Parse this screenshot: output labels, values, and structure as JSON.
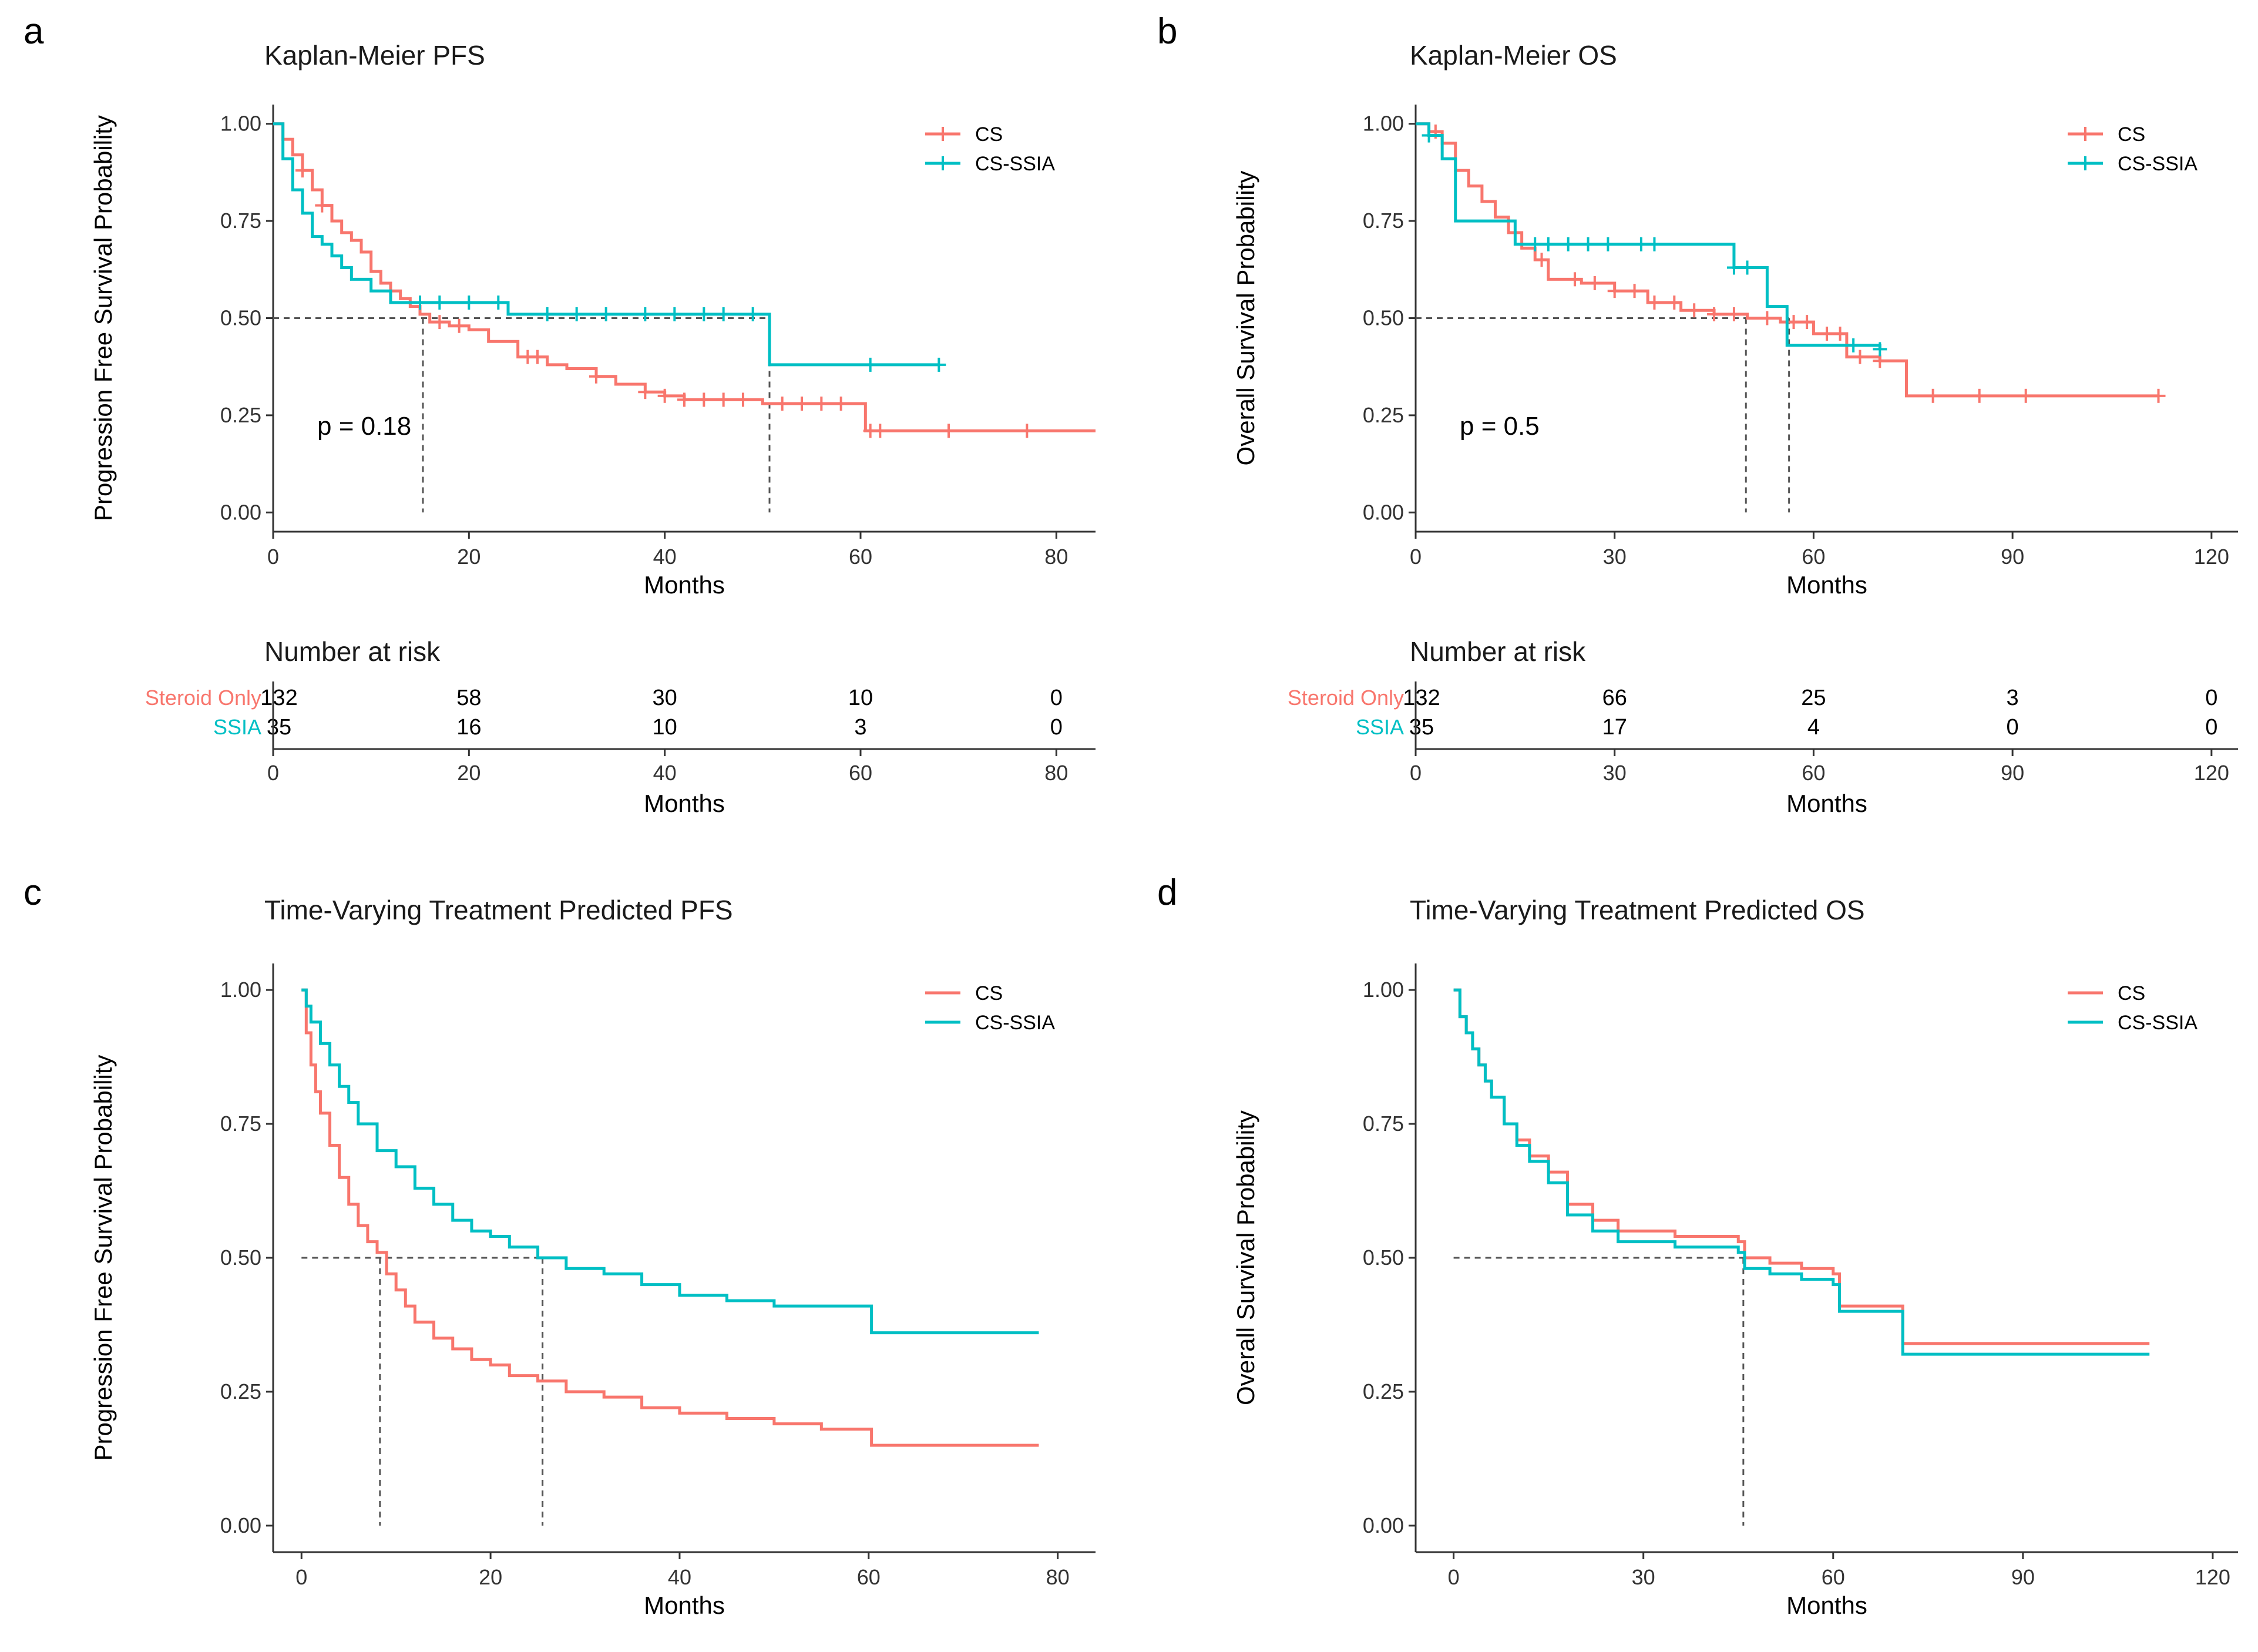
{
  "colors": {
    "cs": "#F8766D",
    "cs_ssia": "#00BFC4",
    "axis": "#333333",
    "ref": "#555555"
  },
  "chart_data": [
    {
      "id": "a",
      "panel": "a",
      "type": "line",
      "title": "Kaplan-Meier PFS",
      "xlabel": "Months",
      "ylabel": "Progression Free Survival Probability",
      "xlim": [
        0,
        84
      ],
      "xticks": [
        0,
        20,
        40,
        60,
        80
      ],
      "ylim": [
        0,
        1
      ],
      "yticks": [
        "0.00",
        "0.25",
        "0.50",
        "0.75",
        "1.00"
      ],
      "legend": [
        "CS",
        "CS-SSIA"
      ],
      "legend_placement": "top-right",
      "censor_marks": true,
      "pvalue": "p = 0.18",
      "median_lines": [
        15.3,
        50.7
      ],
      "series": [
        {
          "name": "CS",
          "color_key": "cs",
          "x": [
            0,
            1,
            2,
            3,
            4,
            5,
            6,
            7,
            8,
            9,
            10,
            11,
            12,
            13,
            14,
            15,
            16,
            18,
            20,
            22,
            25,
            28,
            30,
            33,
            35,
            38,
            40,
            42,
            45,
            50,
            55,
            60,
            60.5,
            84
          ],
          "y": [
            1,
            0.96,
            0.92,
            0.88,
            0.83,
            0.79,
            0.75,
            0.72,
            0.7,
            0.67,
            0.62,
            0.59,
            0.57,
            0.55,
            0.53,
            0.51,
            0.49,
            0.48,
            0.47,
            0.44,
            0.4,
            0.38,
            0.37,
            0.35,
            0.33,
            0.31,
            0.3,
            0.29,
            0.29,
            0.28,
            0.28,
            0.28,
            0.21,
            0.21
          ],
          "censor": [
            3,
            5,
            17,
            19,
            26,
            27,
            33,
            38,
            40,
            42,
            44,
            46,
            48,
            52,
            54,
            56,
            58,
            61,
            62,
            69,
            77
          ]
        },
        {
          "name": "CS-SSIA",
          "color_key": "cs_ssia",
          "x": [
            0,
            1,
            2,
            3,
            4,
            5,
            6,
            7,
            8,
            9,
            10,
            11,
            12,
            13,
            14,
            24,
            50.7,
            68
          ],
          "y": [
            1,
            0.91,
            0.83,
            0.77,
            0.71,
            0.69,
            0.66,
            0.63,
            0.6,
            0.6,
            0.57,
            0.57,
            0.54,
            0.54,
            0.54,
            0.51,
            0.38,
            0.38
          ],
          "censor": [
            15,
            17,
            20,
            23,
            28,
            31,
            34,
            38,
            41,
            44,
            46,
            49,
            61,
            68
          ]
        }
      ],
      "risk_table": {
        "title": "Number at risk",
        "xlabel": "Months",
        "times": [
          0,
          20,
          40,
          60,
          80
        ],
        "rows": [
          {
            "label": "Steroid Only",
            "color_key": "cs",
            "values": [
              "132",
              "58",
              "30",
              "10",
              "0"
            ]
          },
          {
            "label": "SSIA",
            "color_key": "cs_ssia",
            "values": [
              "35",
              "16",
              "10",
              "3",
              "0"
            ]
          }
        ]
      }
    },
    {
      "id": "b",
      "panel": "b",
      "type": "line",
      "title": "Kaplan-Meier OS",
      "xlabel": "Months",
      "ylabel": "Overall Survival Probability",
      "xlim": [
        0,
        124
      ],
      "xticks": [
        0,
        30,
        60,
        90,
        120
      ],
      "ylim": [
        0,
        1
      ],
      "yticks": [
        "0.00",
        "0.25",
        "0.50",
        "0.75",
        "1.00"
      ],
      "legend": [
        "CS",
        "CS-SSIA"
      ],
      "legend_placement": "top-right",
      "censor_marks": true,
      "pvalue": "p = 0.5",
      "median_lines": [
        49.8,
        56.3
      ],
      "series": [
        {
          "name": "CS",
          "color_key": "cs",
          "x": [
            0,
            2,
            4,
            6,
            8,
            10,
            12,
            14,
            16,
            18,
            20,
            25,
            30,
            35,
            40,
            45,
            50,
            55,
            60,
            65,
            70,
            74,
            80,
            90,
            112
          ],
          "y": [
            1,
            0.98,
            0.95,
            0.88,
            0.84,
            0.8,
            0.76,
            0.72,
            0.68,
            0.65,
            0.6,
            0.59,
            0.57,
            0.54,
            0.52,
            0.51,
            0.5,
            0.49,
            0.46,
            0.4,
            0.39,
            0.3,
            0.3,
            0.3,
            0.3
          ],
          "censor": [
            3,
            15,
            19,
            24,
            27,
            30,
            33,
            36,
            39,
            42,
            45,
            48,
            53,
            57,
            59,
            62,
            64,
            67,
            70,
            78,
            85,
            92,
            112
          ]
        },
        {
          "name": "CS-SSIA",
          "color_key": "cs_ssia",
          "x": [
            0,
            2,
            4,
            6,
            15,
            48,
            50,
            53,
            56,
            70
          ],
          "y": [
            1,
            0.97,
            0.91,
            0.75,
            0.69,
            0.63,
            0.63,
            0.53,
            0.43,
            0.42
          ],
          "censor": [
            2,
            18,
            20,
            23,
            26,
            29,
            34,
            36,
            48,
            50,
            66,
            70
          ]
        }
      ],
      "risk_table": {
        "title": "Number at risk",
        "xlabel": "Months",
        "times": [
          0,
          30,
          60,
          90,
          120
        ],
        "rows": [
          {
            "label": "Steroid Only",
            "color_key": "cs",
            "values": [
              "132",
              "66",
              "25",
              "3",
              "0"
            ]
          },
          {
            "label": "SSIA",
            "color_key": "cs_ssia",
            "values": [
              "35",
              "17",
              "4",
              "0",
              "0"
            ]
          }
        ]
      }
    },
    {
      "id": "c",
      "panel": "c",
      "type": "line",
      "title": "Time-Varying Treatment Predicted PFS",
      "xlabel": "Months",
      "ylabel": "Progression Free Survival Probability",
      "xlim": [
        -3,
        84
      ],
      "xticks": [
        0,
        20,
        40,
        60,
        80
      ],
      "ylim": [
        0,
        1
      ],
      "yticks": [
        "0.00",
        "0.25",
        "0.50",
        "0.75",
        "1.00"
      ],
      "legend": [
        "CS",
        "CS-SSIA"
      ],
      "legend_placement": "top-right",
      "censor_marks": false,
      "median_lines": [
        8.3,
        25.5
      ],
      "series": [
        {
          "name": "CS",
          "color_key": "cs",
          "x": [
            0,
            0.5,
            1,
            1.5,
            2,
            3,
            4,
            5,
            6,
            7,
            8,
            9,
            10,
            11,
            12,
            14,
            16,
            18,
            20,
            22,
            25,
            28,
            32,
            36,
            40,
            45,
            50,
            55,
            60,
            60.3,
            78
          ],
          "y": [
            1,
            0.92,
            0.86,
            0.81,
            0.77,
            0.71,
            0.65,
            0.6,
            0.56,
            0.53,
            0.51,
            0.47,
            0.44,
            0.41,
            0.38,
            0.35,
            0.33,
            0.31,
            0.3,
            0.28,
            0.27,
            0.25,
            0.24,
            0.22,
            0.21,
            0.2,
            0.19,
            0.18,
            0.18,
            0.15,
            0.15
          ],
          "censor": []
        },
        {
          "name": "CS-SSIA",
          "color_key": "cs_ssia",
          "x": [
            0,
            0.5,
            1,
            2,
            3,
            4,
            5,
            6,
            8,
            10,
            12,
            14,
            16,
            18,
            20,
            22,
            25,
            28,
            32,
            36,
            40,
            45,
            50,
            55,
            60,
            60.3,
            78
          ],
          "y": [
            1,
            0.97,
            0.94,
            0.9,
            0.86,
            0.82,
            0.79,
            0.75,
            0.7,
            0.67,
            0.63,
            0.6,
            0.57,
            0.55,
            0.54,
            0.52,
            0.5,
            0.48,
            0.47,
            0.45,
            0.43,
            0.42,
            0.41,
            0.41,
            0.41,
            0.36,
            0.36
          ],
          "censor": []
        }
      ]
    },
    {
      "id": "d",
      "panel": "d",
      "type": "line",
      "title": "Time-Varying Treatment Predicted OS",
      "xlabel": "Months",
      "ylabel": "Overall Survival Probability",
      "xlim": [
        -6,
        124
      ],
      "xticks": [
        0,
        30,
        60,
        90,
        120
      ],
      "ylim": [
        0,
        1
      ],
      "yticks": [
        "0.00",
        "0.25",
        "0.50",
        "0.75",
        "1.00"
      ],
      "legend": [
        "CS",
        "CS-SSIA"
      ],
      "legend_placement": "top-right",
      "censor_marks": false,
      "median_lines": [
        45.8
      ],
      "series": [
        {
          "name": "CS",
          "color_key": "cs",
          "x": [
            0,
            1,
            2,
            3,
            4,
            5,
            6,
            8,
            10,
            12,
            15,
            18,
            22,
            26,
            30,
            35,
            40,
            45,
            46,
            50,
            55,
            60,
            61,
            70,
            71,
            110
          ],
          "y": [
            1,
            0.95,
            0.92,
            0.89,
            0.86,
            0.83,
            0.8,
            0.75,
            0.72,
            0.69,
            0.66,
            0.6,
            0.57,
            0.55,
            0.55,
            0.54,
            0.54,
            0.53,
            0.5,
            0.49,
            0.48,
            0.47,
            0.41,
            0.41,
            0.34,
            0.34
          ],
          "censor": []
        },
        {
          "name": "CS-SSIA",
          "color_key": "cs_ssia",
          "x": [
            0,
            1,
            2,
            3,
            4,
            5,
            6,
            8,
            10,
            12,
            15,
            18,
            22,
            26,
            30,
            35,
            40,
            45,
            46,
            50,
            55,
            60,
            61,
            70,
            71,
            110
          ],
          "y": [
            1,
            0.95,
            0.92,
            0.89,
            0.86,
            0.83,
            0.8,
            0.75,
            0.71,
            0.68,
            0.64,
            0.58,
            0.55,
            0.53,
            0.53,
            0.52,
            0.52,
            0.51,
            0.48,
            0.47,
            0.46,
            0.45,
            0.4,
            0.4,
            0.32,
            0.32
          ],
          "censor": []
        }
      ]
    }
  ]
}
